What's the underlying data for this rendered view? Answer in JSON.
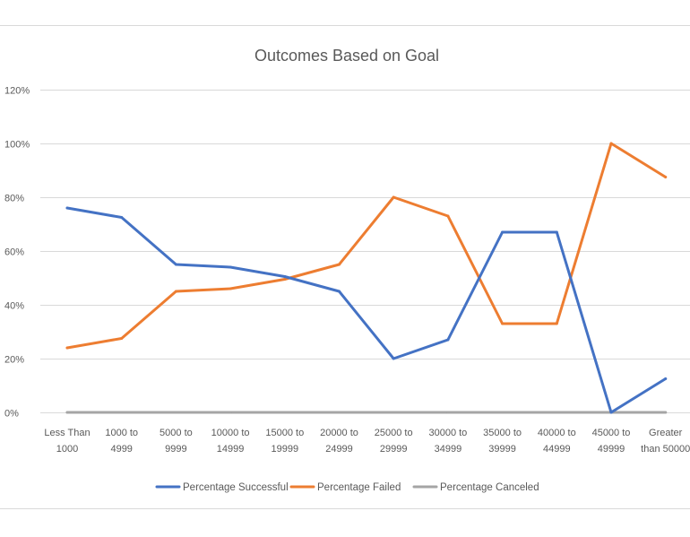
{
  "chart_data": {
    "type": "line",
    "title": "Outcomes Based on Goal",
    "xlabel": "",
    "ylabel": "",
    "categories": [
      [
        "Less Than",
        "1000"
      ],
      [
        "1000 to",
        "4999"
      ],
      [
        "5000 to",
        "9999"
      ],
      [
        "10000 to",
        "14999"
      ],
      [
        "15000 to",
        "19999"
      ],
      [
        "20000 to",
        "24999"
      ],
      [
        "25000 to",
        "29999"
      ],
      [
        "30000 to",
        "34999"
      ],
      [
        "35000 to",
        "39999"
      ],
      [
        "40000 to",
        "44999"
      ],
      [
        "45000 to",
        "49999"
      ],
      [
        "Greater",
        "than 50000"
      ]
    ],
    "ylim": [
      0,
      120
    ],
    "yticks": [
      0,
      20,
      40,
      60,
      80,
      100,
      120
    ],
    "ytick_labels": [
      "0%",
      "20%",
      "40%",
      "60%",
      "80%",
      "100%",
      "120%"
    ],
    "grid": true,
    "legend_position": "bottom",
    "series": [
      {
        "name": "Percentage Successful",
        "color": "#4472C4",
        "values": [
          76,
          72.5,
          55,
          54,
          50.5,
          45,
          20,
          27,
          67,
          67,
          0,
          12.5
        ]
      },
      {
        "name": "Percentage Failed",
        "color": "#ED7D31",
        "values": [
          24,
          27.5,
          45,
          46,
          49.5,
          55,
          80,
          73,
          33,
          33,
          100,
          87.5
        ]
      },
      {
        "name": "Percentage Canceled",
        "color": "#A5A5A5",
        "values": [
          0,
          0,
          0,
          0,
          0,
          0,
          0,
          0,
          0,
          0,
          0,
          0
        ]
      }
    ]
  }
}
